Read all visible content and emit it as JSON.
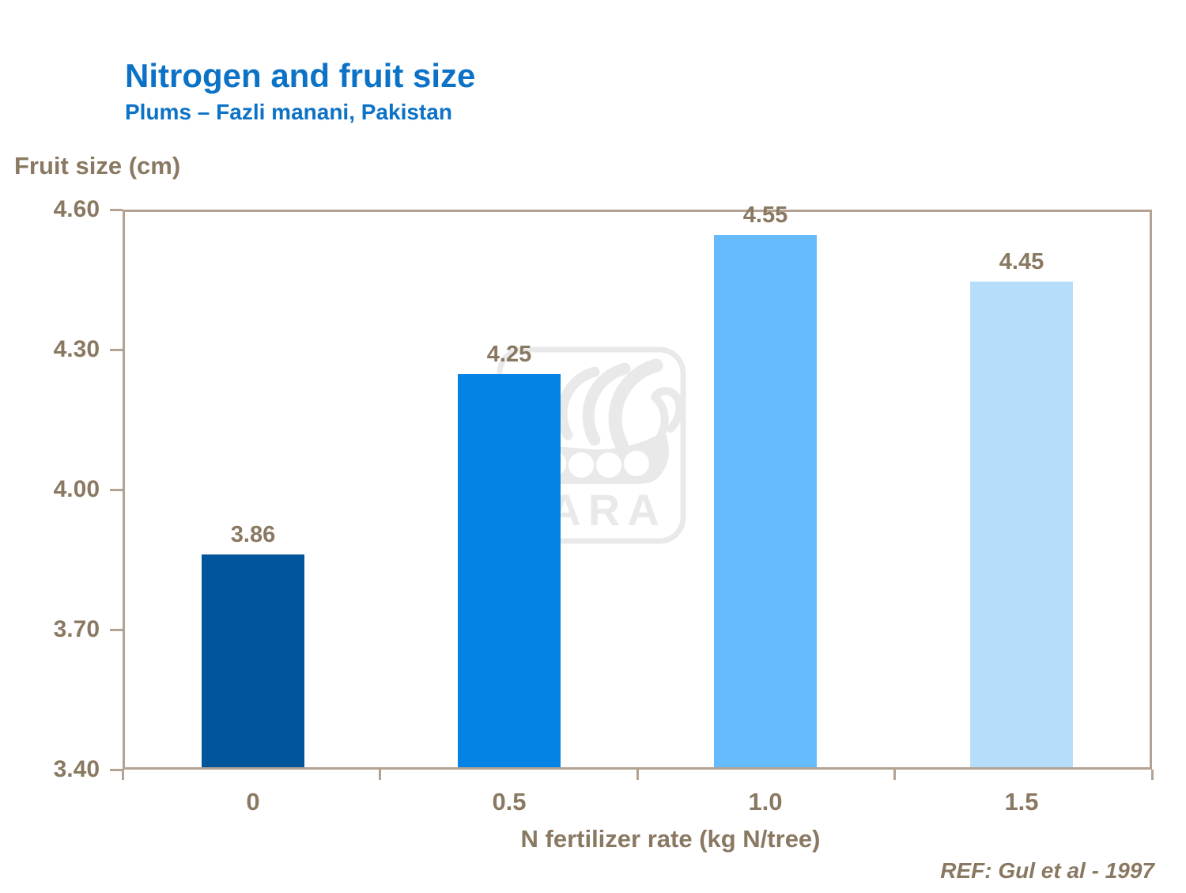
{
  "header": {
    "title": "Nitrogen and fruit size",
    "subtitle": "Plums – Fazli manani, Pakistan"
  },
  "footer": {
    "reference": "REF: Gul et al - 1997"
  },
  "watermark": {
    "brand": "YARA"
  },
  "colors": {
    "title_blue": "#0C72C6",
    "text_brown": "#8A7962",
    "frame_tan": "#B3A291",
    "watermark_gray": "#E9E9E9"
  },
  "chart_data": {
    "type": "bar",
    "title": "Nitrogen and fruit size",
    "subtitle": "Plums – Fazli manani, Pakistan",
    "ylabel": "Fruit size (cm)",
    "xlabel": "N fertilizer rate (kg N/tree)",
    "categories": [
      "0",
      "0.5",
      "1.0",
      "1.5"
    ],
    "values": [
      3.86,
      4.25,
      4.55,
      4.45
    ],
    "value_labels": [
      "3.86",
      "4.25",
      "4.55",
      "4.45"
    ],
    "bar_colors": [
      "#01569B",
      "#0583E5",
      "#66BBFF",
      "#B6DEFB"
    ],
    "ylim": [
      3.4,
      4.6
    ],
    "yticks": [
      {
        "value": 4.6,
        "label": "4.60"
      },
      {
        "value": 4.3,
        "label": "4.30"
      },
      {
        "value": 4.0,
        "label": "4.00"
      },
      {
        "value": 3.7,
        "label": "3.70"
      },
      {
        "value": 3.4,
        "label": "3.40"
      }
    ],
    "grid": false,
    "legend": false,
    "source": "REF: Gul et al - 1997"
  }
}
